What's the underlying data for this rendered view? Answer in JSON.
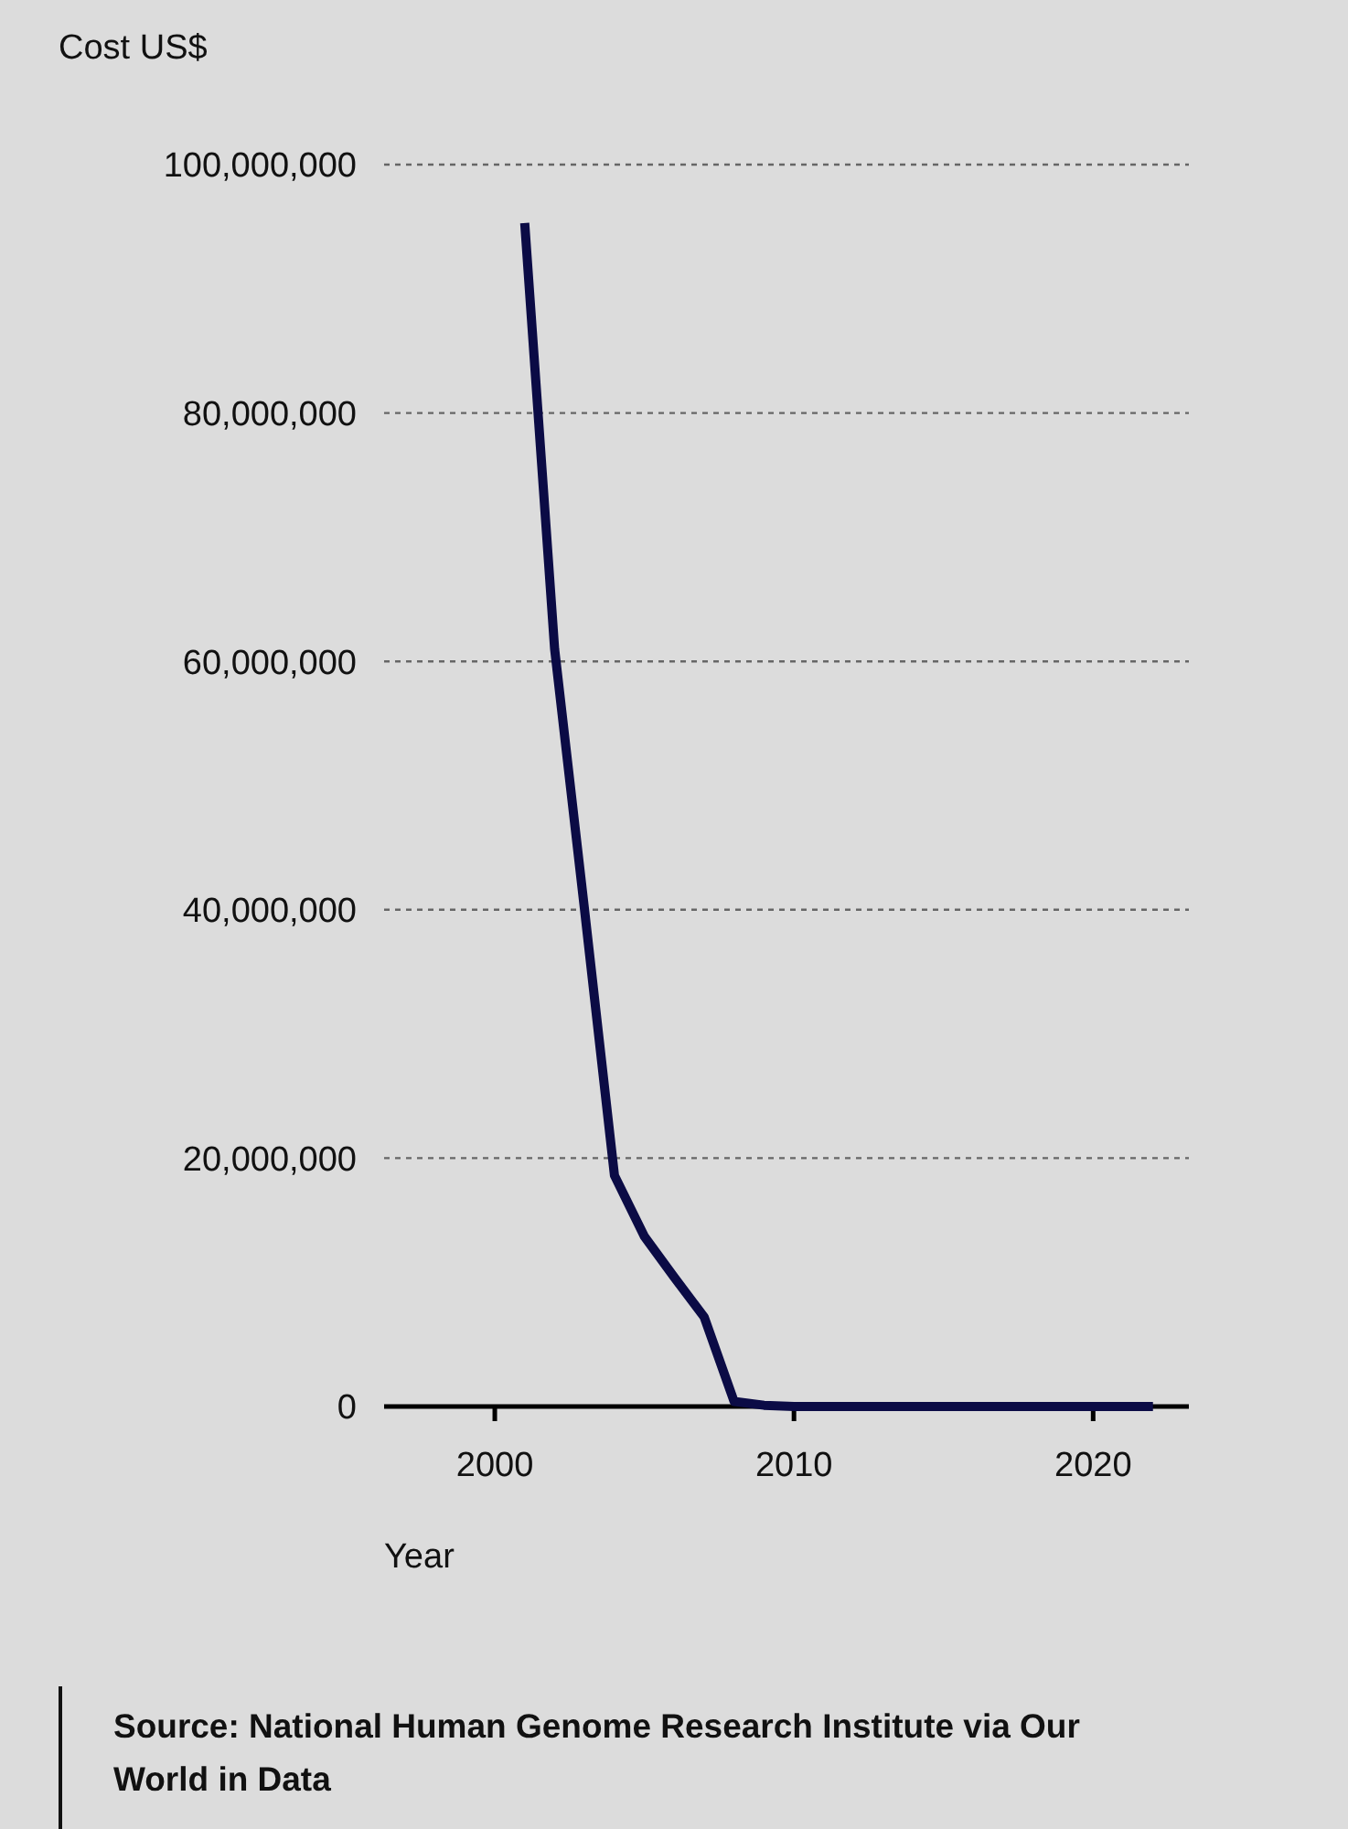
{
  "chart_data": {
    "type": "line",
    "ylabel": "Cost US$",
    "xlabel": "Year",
    "x": [
      2001,
      2002,
      2003,
      2004,
      2005,
      2006,
      2007,
      2008,
      2009,
      2010,
      2011,
      2012,
      2013,
      2014,
      2015,
      2016,
      2017,
      2018,
      2019,
      2020,
      2021,
      2022
    ],
    "series": [
      {
        "color": "#0b0b45",
        "values": [
          95300000,
          61000000,
          40000000,
          18600000,
          13700000,
          10400000,
          7200000,
          400000,
          100000,
          0,
          0,
          0,
          0,
          0,
          0,
          0,
          0,
          0,
          0,
          0,
          0,
          0
        ]
      }
    ],
    "xlim": [
      1996.3,
      2023.2
    ],
    "xticks": [
      2000,
      2010,
      2020
    ],
    "ylim": [
      0,
      100000000
    ],
    "yticks": [
      {
        "value": 0,
        "label": "0"
      },
      {
        "value": 20000000,
        "label": "20,000,000"
      },
      {
        "value": 40000000,
        "label": "40,000,000"
      },
      {
        "value": 60000000,
        "label": "60,000,000"
      },
      {
        "value": 80000000,
        "label": "80,000,000"
      },
      {
        "value": 100000000,
        "label": "100,000,000"
      }
    ],
    "grid": "y",
    "marker": "none",
    "line_style": "solid",
    "annotations": [
      "Source: National Human Genome Research Institute via Our World in Data"
    ]
  }
}
